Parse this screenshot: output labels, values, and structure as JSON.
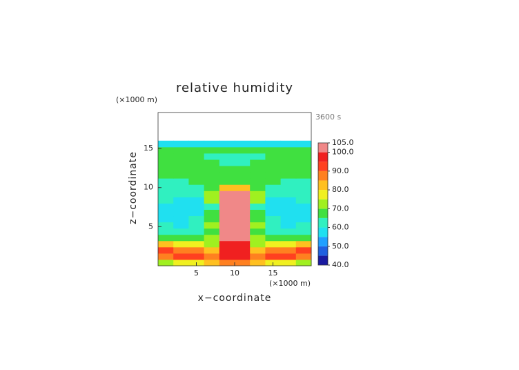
{
  "chart_data": {
    "type": "contour",
    "title": "relative humidity",
    "time_label": "3600 s",
    "x_unit": "(×1000 m)",
    "y_unit": "(×1000 m)",
    "xlabel": "x−coordinate",
    "ylabel": "z−coordinate",
    "x": [
      1,
      3,
      5,
      7,
      9,
      11,
      13,
      15,
      17,
      19
    ],
    "y": [
      0.4,
      1.2,
      2.0,
      2.8,
      3.6,
      4.4,
      5.2,
      6.0,
      6.8,
      7.6,
      8.4,
      9.2,
      10.0,
      10.8,
      11.6,
      12.4,
      13.2,
      14.0,
      14.8,
      15.6
    ],
    "z": [
      [
        72,
        75,
        78,
        82,
        88,
        88,
        82,
        78,
        75,
        72
      ],
      [
        85,
        92,
        90,
        88,
        95,
        95,
        88,
        90,
        92,
        85
      ],
      [
        90,
        88,
        85,
        82,
        97,
        97,
        82,
        85,
        88,
        90
      ],
      [
        80,
        75,
        78,
        72,
        97,
        97,
        72,
        78,
        75,
        80
      ],
      [
        68,
        66,
        65,
        70,
        100,
        100,
        70,
        65,
        66,
        68
      ],
      [
        62,
        60,
        62,
        65,
        100,
        100,
        65,
        62,
        60,
        62
      ],
      [
        60,
        58,
        60,
        72,
        100,
        100,
        72,
        60,
        58,
        60
      ],
      [
        58,
        57,
        60,
        66,
        102,
        102,
        66,
        60,
        57,
        58
      ],
      [
        57,
        56,
        58,
        68,
        103,
        103,
        68,
        58,
        56,
        57
      ],
      [
        58,
        57,
        56,
        60,
        103,
        103,
        60,
        56,
        57,
        58
      ],
      [
        60,
        59,
        57,
        70,
        103,
        103,
        70,
        57,
        59,
        60
      ],
      [
        62,
        62,
        60,
        72,
        103,
        103,
        72,
        60,
        62,
        62
      ],
      [
        63,
        63,
        62,
        66,
        80,
        80,
        66,
        62,
        63,
        63
      ],
      [
        64,
        64,
        65,
        66,
        67,
        67,
        66,
        65,
        64,
        64
      ],
      [
        66,
        66,
        66,
        67,
        68,
        68,
        67,
        66,
        66,
        66
      ],
      [
        68,
        68,
        68,
        68,
        68,
        68,
        68,
        68,
        68,
        68
      ],
      [
        66,
        66,
        66,
        65,
        64,
        64,
        65,
        66,
        66,
        66
      ],
      [
        65,
        65,
        65,
        64,
        63,
        63,
        64,
        65,
        65,
        65
      ],
      [
        68,
        68,
        68,
        68,
        68,
        68,
        68,
        68,
        68,
        68
      ],
      [
        55,
        55,
        55,
        55,
        55,
        55,
        55,
        55,
        55,
        55
      ]
    ],
    "xlim": [
      0,
      20
    ],
    "ylim": [
      0,
      19.6
    ],
    "xticks": [
      5,
      10,
      15
    ],
    "yticks": [
      5,
      10,
      15
    ],
    "levels": [
      40,
      45,
      50,
      55,
      60,
      65,
      70,
      75,
      80,
      85,
      90,
      95,
      100,
      105
    ],
    "colors": [
      "#1a1aa0",
      "#2060e0",
      "#20a0ff",
      "#20e0f0",
      "#30f0c0",
      "#40e040",
      "#a0f020",
      "#f0f020",
      "#ffc020",
      "#ff8020",
      "#ff4020",
      "#f02020",
      "#f08888"
    ],
    "colorbar_ticks": [
      {
        "value": 40,
        "label": "40.0"
      },
      {
        "value": 50,
        "label": "50.0"
      },
      {
        "value": 60,
        "label": "60.0"
      },
      {
        "value": 70,
        "label": "70.0"
      },
      {
        "value": 80,
        "label": "80.0"
      },
      {
        "value": 90,
        "label": "90.0"
      },
      {
        "value": 100,
        "label": "100.0"
      },
      {
        "value": 105,
        "label": "105.0"
      }
    ]
  }
}
